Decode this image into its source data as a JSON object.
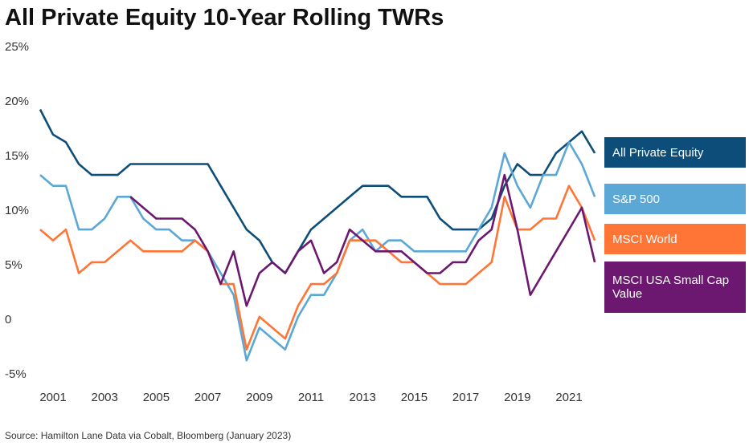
{
  "chart_data": {
    "type": "line",
    "title": "All Private Equity 10-Year Rolling TWRs",
    "source": "Source: Hamilton Lane Data via Cobalt, Bloomberg (January 2023)",
    "x": [
      2000.5,
      2001,
      2001.5,
      2002,
      2002.5,
      2003,
      2003.5,
      2004,
      2004.5,
      2005,
      2005.5,
      2006,
      2006.5,
      2007,
      2007.5,
      2008,
      2008.5,
      2009,
      2009.5,
      2010,
      2010.5,
      2011,
      2011.5,
      2012,
      2012.5,
      2013,
      2013.5,
      2014,
      2014.5,
      2015,
      2015.5,
      2016,
      2016.5,
      2017,
      2017.5,
      2018,
      2018.5,
      2019,
      2019.5,
      2020,
      2020.5,
      2021,
      2021.5,
      2022
    ],
    "series": [
      {
        "name": "All Private Equity",
        "color": "#0d4d7a",
        "values": [
          19.3,
          17.0,
          16.3,
          14.3,
          13.3,
          13.3,
          13.3,
          14.3,
          14.3,
          14.3,
          14.3,
          14.3,
          14.3,
          14.3,
          12.3,
          10.3,
          8.3,
          7.3,
          5.3,
          4.3,
          6.3,
          8.3,
          9.3,
          10.3,
          11.3,
          12.3,
          12.3,
          12.3,
          11.3,
          11.3,
          11.3,
          9.3,
          8.3,
          8.3,
          8.3,
          9.3,
          12.3,
          14.3,
          13.3,
          13.3,
          15.3,
          16.3,
          17.3,
          15.3
        ]
      },
      {
        "name": "S&P 500",
        "color": "#5ba7d6",
        "values": [
          13.3,
          12.3,
          12.3,
          8.3,
          8.3,
          9.3,
          11.3,
          11.3,
          9.3,
          8.3,
          8.3,
          7.3,
          7.3,
          6.3,
          4.3,
          2.3,
          -3.7,
          -0.7,
          -1.7,
          -2.7,
          0.3,
          2.3,
          2.3,
          4.3,
          7.3,
          8.3,
          6.3,
          7.3,
          7.3,
          6.3,
          6.3,
          6.3,
          6.3,
          6.3,
          8.3,
          10.3,
          15.3,
          12.3,
          10.3,
          13.3,
          13.3,
          16.3,
          14.3,
          11.3
        ]
      },
      {
        "name": "MSCI World",
        "color": "#ff7535",
        "values": [
          8.3,
          7.3,
          8.3,
          4.3,
          5.3,
          5.3,
          6.3,
          7.3,
          6.3,
          6.3,
          6.3,
          6.3,
          7.3,
          6.3,
          3.3,
          3.3,
          -2.7,
          0.3,
          -0.7,
          -1.7,
          1.3,
          3.3,
          3.3,
          4.3,
          7.3,
          7.3,
          7.3,
          6.3,
          5.3,
          5.3,
          4.3,
          3.3,
          3.3,
          3.3,
          4.3,
          5.3,
          11.3,
          8.3,
          8.3,
          9.3,
          9.3,
          12.3,
          10.3,
          7.3
        ]
      },
      {
        "name": "MSCI USA Small Cap Value",
        "color": "#6d1870",
        "values": [
          null,
          null,
          null,
          null,
          null,
          null,
          null,
          11.3,
          10.3,
          9.3,
          9.3,
          9.3,
          8.3,
          6.3,
          3.3,
          6.3,
          1.3,
          4.3,
          5.3,
          4.3,
          6.3,
          7.3,
          4.3,
          5.3,
          8.3,
          7.3,
          6.3,
          6.3,
          6.3,
          5.3,
          4.3,
          4.3,
          5.3,
          5.3,
          7.3,
          8.3,
          13.3,
          8.3,
          2.3,
          4.3,
          6.3,
          8.3,
          10.3,
          5.3
        ]
      }
    ],
    "xlim": [
      2000.4,
      2022.2
    ],
    "xticks": [
      2001,
      2003,
      2005,
      2007,
      2009,
      2011,
      2013,
      2015,
      2017,
      2019,
      2021
    ],
    "ylim": [
      -5,
      25
    ],
    "yticks": [
      {
        "value": -5,
        "label": "-5%"
      },
      {
        "value": 0,
        "label": "0"
      },
      {
        "value": 5,
        "label": "5%"
      },
      {
        "value": 10,
        "label": "10%"
      },
      {
        "value": 15,
        "label": "15%"
      },
      {
        "value": 20,
        "label": "20%"
      },
      {
        "value": 25,
        "label": "25%"
      }
    ],
    "grid": false
  }
}
